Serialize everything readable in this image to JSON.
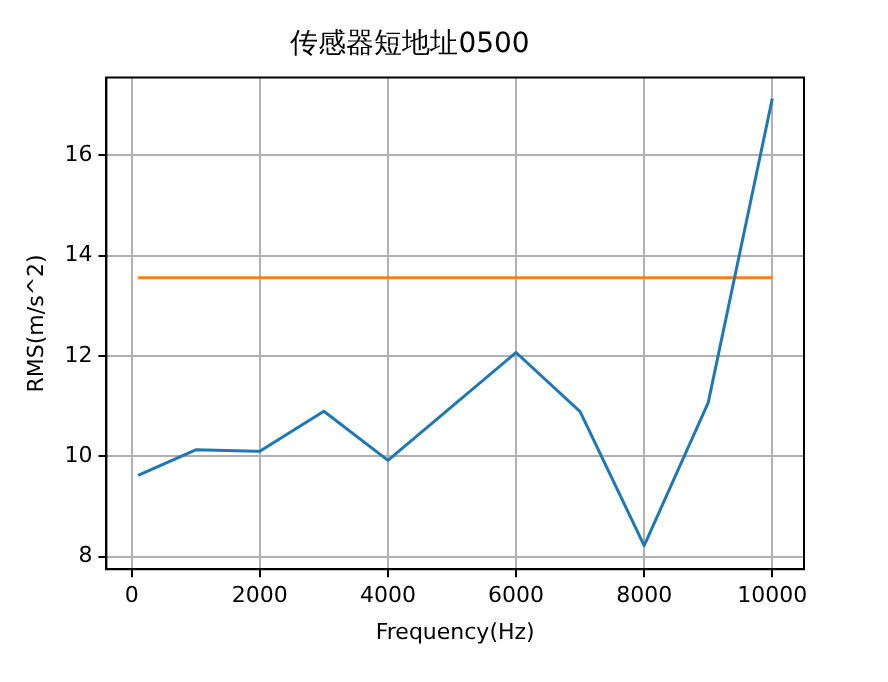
{
  "chart_data": {
    "type": "line",
    "title": "传感器短地址0500",
    "xlabel": "Frequency(Hz)",
    "ylabel": "RMS(m/s^2)",
    "series": [
      {
        "color": "#1f77b4",
        "x": [
          100,
          1000,
          2000,
          3000,
          4000,
          6000,
          7000,
          8000,
          9000,
          10000
        ],
        "values": [
          9.62,
          10.13,
          10.1,
          10.9,
          9.92,
          12.07,
          10.89,
          8.22,
          11.07,
          17.13
        ]
      },
      {
        "color": "#ff7f0e",
        "x": [
          100,
          10000
        ],
        "values": [
          13.56,
          13.56
        ]
      }
    ],
    "xlim": [
      -395,
      10495
    ],
    "xticks": [
      0,
      2000,
      4000,
      6000,
      8000,
      10000
    ],
    "ylim": [
      7.75,
      17.55
    ],
    "yticks": [
      8,
      10,
      12,
      14,
      16
    ],
    "grid": true,
    "legend": false,
    "marker": "none",
    "line_style": "solid"
  }
}
